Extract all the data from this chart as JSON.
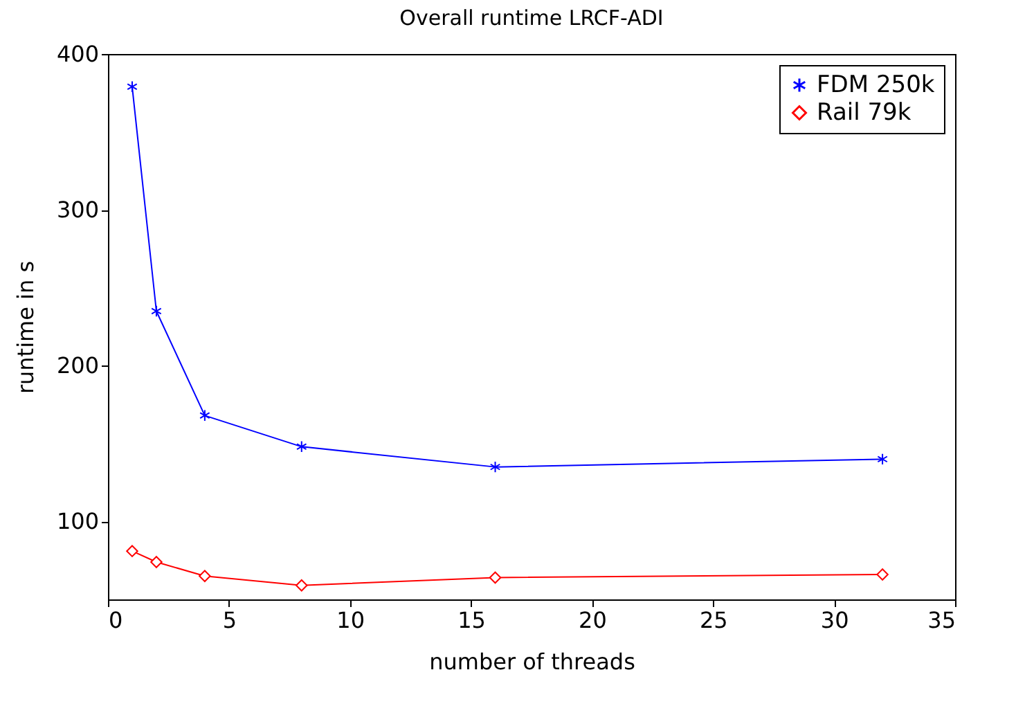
{
  "chart_data": {
    "type": "line",
    "title": "Overall runtime LRCF-ADI",
    "xlabel": "number of threads",
    "ylabel": "runtime in s",
    "x": [
      1,
      2,
      4,
      8,
      16,
      32
    ],
    "series": [
      {
        "name": "FDM 250k",
        "color": "#0000ff",
        "marker": "cross",
        "values": [
          379,
          235,
          168,
          148,
          135,
          140
        ]
      },
      {
        "name": "Rail 79k",
        "color": "#ff0000",
        "marker": "diamond",
        "values": [
          81,
          74,
          65,
          59,
          64,
          66
        ]
      }
    ],
    "xlim": [
      0,
      35
    ],
    "xticks": [
      0,
      5,
      10,
      15,
      20,
      25,
      30,
      35
    ],
    "ylim": [
      50,
      400
    ],
    "yticks": [
      100,
      200,
      300,
      400
    ],
    "grid": false,
    "legend": "top right"
  }
}
